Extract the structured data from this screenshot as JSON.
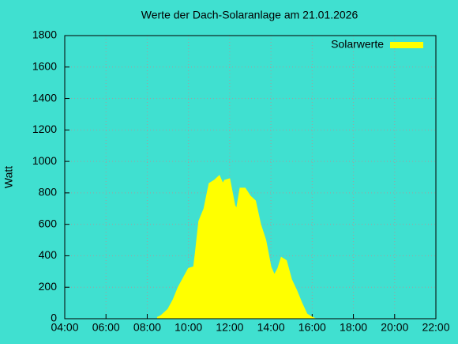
{
  "chart_data": {
    "type": "area",
    "title": "Werte der Dach-Solaranlage am 21.01.2026",
    "ylabel": "Watt",
    "x": [
      "08:30",
      "08:40",
      "09:00",
      "09:15",
      "09:30",
      "09:45",
      "10:00",
      "10:15",
      "10:20",
      "10:30",
      "10:45",
      "11:00",
      "11:15",
      "11:30",
      "11:40",
      "11:45",
      "12:00",
      "12:15",
      "12:20",
      "12:30",
      "12:45",
      "13:00",
      "13:15",
      "13:30",
      "13:45",
      "14:00",
      "14:10",
      "14:20",
      "14:30",
      "14:45",
      "15:00",
      "15:15",
      "15:30",
      "15:45",
      "16:00",
      "16:10"
    ],
    "series": [
      {
        "name": "Solarwerte",
        "color": "#ffff00",
        "values": [
          10,
          20,
          60,
          120,
          200,
          260,
          320,
          330,
          420,
          620,
          700,
          860,
          880,
          910,
          860,
          880,
          890,
          720,
          700,
          830,
          830,
          780,
          750,
          600,
          500,
          330,
          280,
          320,
          390,
          370,
          250,
          180,
          100,
          30,
          10,
          0
        ]
      }
    ],
    "xlim": [
      "04:00",
      "22:00"
    ],
    "xticks": [
      "04:00",
      "06:00",
      "08:00",
      "10:00",
      "12:00",
      "14:00",
      "16:00",
      "18:00",
      "20:00",
      "22:00"
    ],
    "ylim": [
      0,
      1800
    ],
    "yticks": [
      0,
      200,
      400,
      600,
      800,
      1000,
      1200,
      1400,
      1600,
      1800
    ],
    "grid": true,
    "legend": "top-right",
    "background": "#40e0d0"
  }
}
